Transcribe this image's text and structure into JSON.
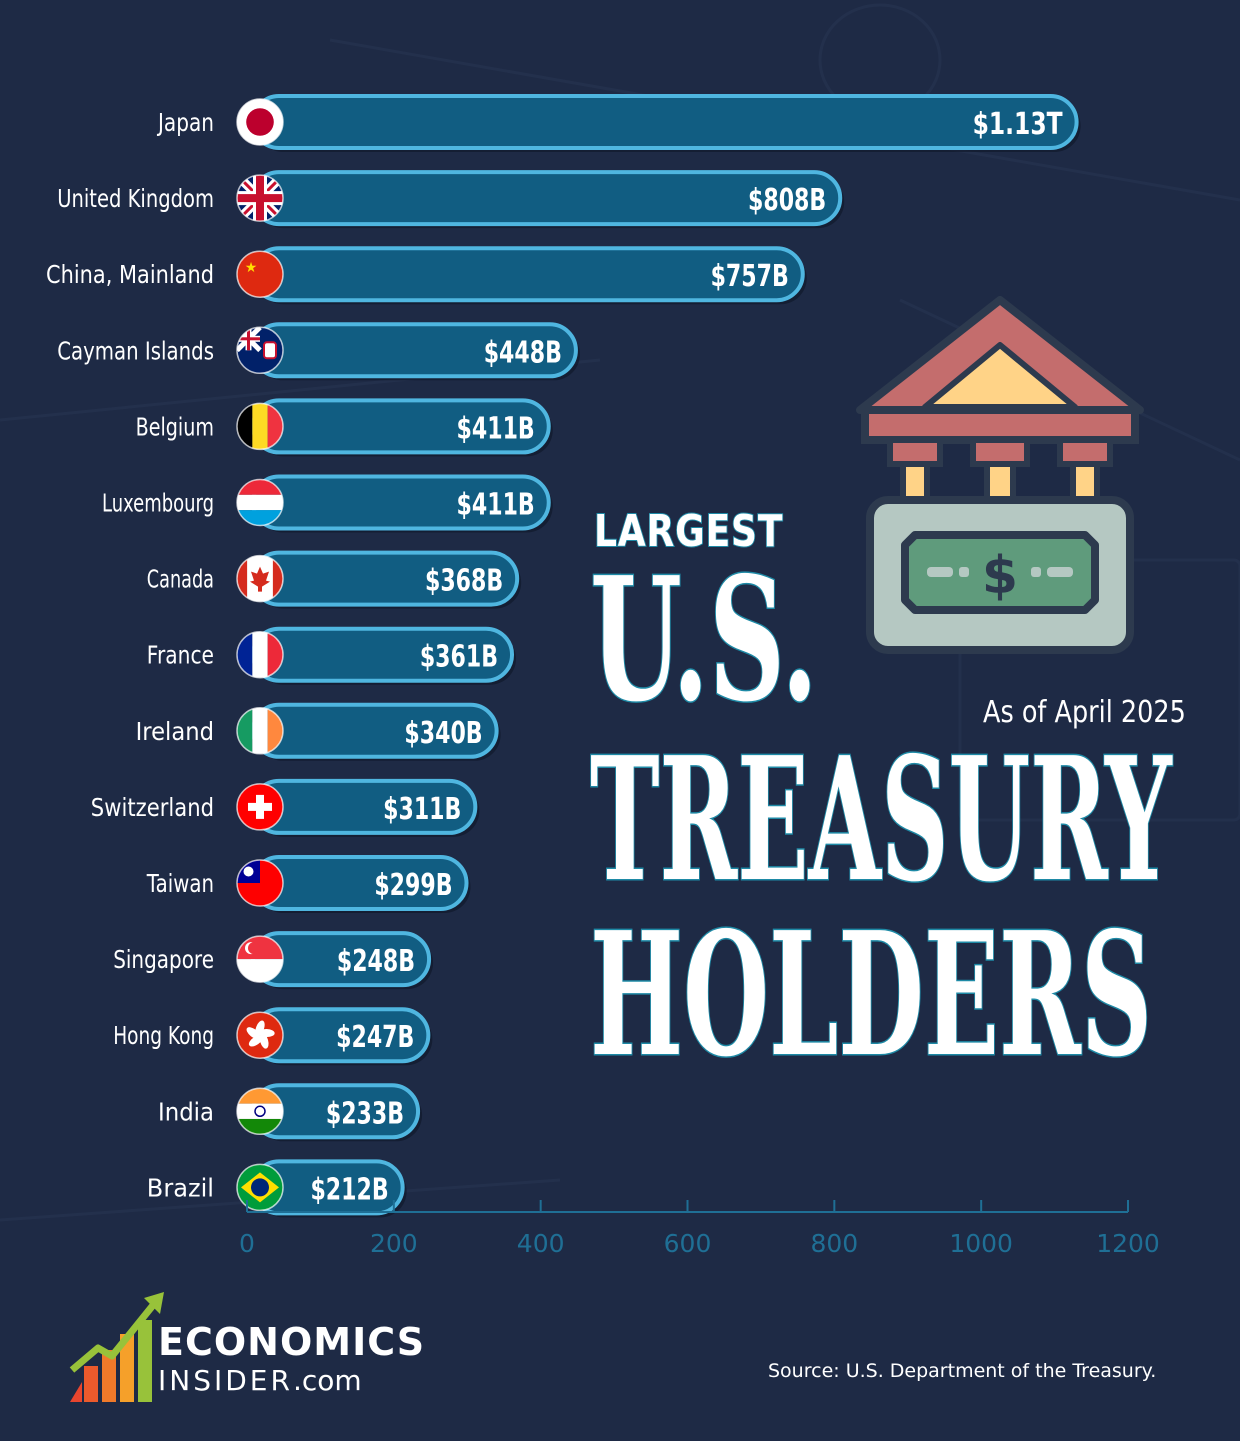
{
  "title": {
    "line1": "LARGEST",
    "line2": "U.S.",
    "line3": "TREASURY",
    "line4": "HOLDERS"
  },
  "subtitle": "As of April 2025",
  "source": "Source: U.S. Department of the Treasury.",
  "logo": {
    "line1": "ECONOMICS",
    "line2": "INSIDER",
    "suffix": ".com"
  },
  "colors": {
    "background": "#1e2a45",
    "bar_fill": "#115d82",
    "bar_outline": "#4fb6e0",
    "title_outline": "#1e8aa6",
    "axis": "#1f6f95"
  },
  "icons": [
    "bank-icon",
    "dollar-bill-icon",
    "growth-arrow-icon"
  ],
  "chart_data": {
    "type": "bar",
    "orientation": "horizontal",
    "categories": [
      "Japan",
      "United Kingdom",
      "China, Mainland",
      "Cayman Islands",
      "Belgium",
      "Luxembourg",
      "Canada",
      "France",
      "Ireland",
      "Switzerland",
      "Taiwan",
      "Singapore",
      "Hong Kong",
      "India",
      "Brazil"
    ],
    "values": [
      1130,
      808,
      757,
      448,
      411,
      411,
      368,
      361,
      340,
      311,
      299,
      248,
      247,
      233,
      212
    ],
    "value_labels": [
      "$1.13T",
      "$808B",
      "$757B",
      "$448B",
      "$411B",
      "$411B",
      "$368B",
      "$361B",
      "$340B",
      "$311B",
      "$299B",
      "$248B",
      "$247B",
      "$233B",
      "$212B"
    ],
    "flags": [
      "japan-flag",
      "uk-flag",
      "china-flag",
      "cayman-flag",
      "belgium-flag",
      "luxembourg-flag",
      "canada-flag",
      "france-flag",
      "ireland-flag",
      "switzerland-flag",
      "taiwan-flag",
      "singapore-flag",
      "hong-kong-flag",
      "india-flag",
      "brazil-flag"
    ],
    "xticks": [
      "0",
      "200",
      "400",
      "600",
      "800",
      "1000",
      "1200"
    ],
    "xlim": [
      0,
      1200
    ],
    "xlabel": "",
    "ylabel": "",
    "grid": false,
    "legend": "none"
  }
}
